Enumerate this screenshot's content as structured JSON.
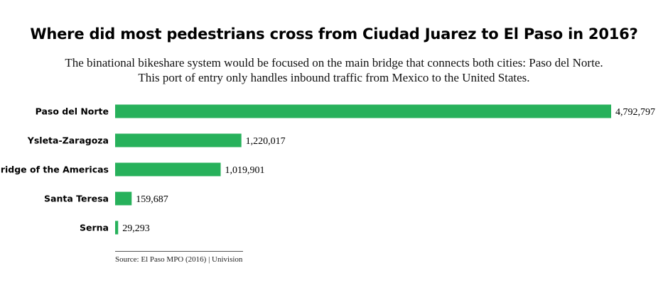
{
  "chart_data": {
    "type": "bar",
    "orientation": "horizontal",
    "title": "Where did most pedestrians cross from Ciudad Juarez to El Paso in 2016?",
    "subtitle": [
      "The binational bikeshare system would be focused on the main bridge that connects both cities: Paso del Norte.",
      "This port of entry only handles inbound traffic from Mexico to the United States."
    ],
    "categories": [
      "Paso del Norte",
      "Ysleta-Zaragoza",
      "Bridge of the Americas",
      "Santa Teresa",
      "Serna"
    ],
    "values": [
      4792797,
      1220017,
      1019901,
      159687,
      29293
    ],
    "value_labels": [
      "4,792,797",
      "1,220,017",
      "1,019,901",
      "159,687",
      "29,293"
    ],
    "xlim": [
      0,
      4792797
    ],
    "grid": false,
    "bar_color": "#27b15b",
    "source": "Source: El Paso MPO (2016)  |  Univision"
  }
}
